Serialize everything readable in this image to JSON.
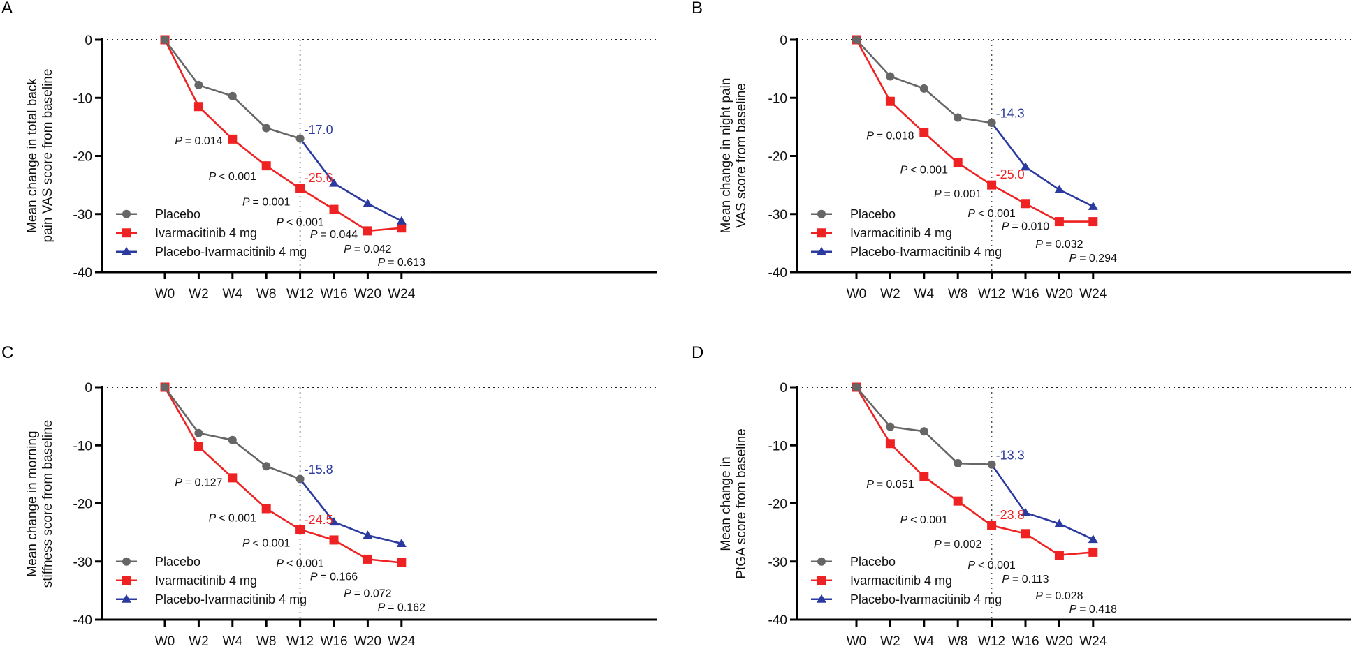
{
  "chart_data": [
    {
      "panel": "A",
      "type": "line",
      "ylabel": [
        "Mean change in total back",
        "pain VAS score from baseline"
      ],
      "xlabel": "",
      "categories": [
        "W0",
        "W2",
        "W4",
        "W8",
        "W12",
        "W16",
        "W20",
        "W24"
      ],
      "ylim": [
        -40,
        0
      ],
      "yticks": [
        0,
        -10,
        -20,
        -30,
        -40
      ],
      "reference_line_x": "W12",
      "series": [
        {
          "name": "Placebo",
          "color": "#666666",
          "marker": "circle",
          "x": [
            "W0",
            "W2",
            "W4",
            "W8",
            "W12"
          ],
          "values": [
            0,
            -7.8,
            -9.7,
            -15.2,
            -17.0
          ]
        },
        {
          "name": "Ivarmacitinib 4 mg",
          "color": "#ee2222",
          "marker": "square",
          "x": [
            "W0",
            "W2",
            "W4",
            "W8",
            "W12",
            "W16",
            "W20",
            "W24"
          ],
          "values": [
            0,
            -11.5,
            -17.1,
            -21.7,
            -25.6,
            -29.2,
            -32.9,
            -32.4
          ]
        },
        {
          "name": "Placebo-Ivarmacitinib 4 mg",
          "color": "#2b3a9e",
          "marker": "triangle",
          "x": [
            "W12",
            "W16",
            "W20",
            "W24"
          ],
          "values": [
            -17.0,
            -24.7,
            -28.2,
            -31.2
          ]
        }
      ],
      "annotations": [
        {
          "text": "-17.0",
          "color": "#2b3a9e",
          "x": "W12",
          "y": -15.5
        },
        {
          "text": "-25.6",
          "color": "#ee2222",
          "x": "W12",
          "y": -23.8
        }
      ],
      "p_values": [
        {
          "x": "W2",
          "label": "= 0.014",
          "y": -17.3
        },
        {
          "x": "W4",
          "label": "< 0.001",
          "y": -23.4
        },
        {
          "x": "W8",
          "label": "= 0.001",
          "y": -27.8
        },
        {
          "x": "W12",
          "label": "< 0.001",
          "y": -31.3
        },
        {
          "x": "W16",
          "label": "= 0.044",
          "y": -33.4
        },
        {
          "x": "W20",
          "label": "= 0.042",
          "y": -35.9
        },
        {
          "x": "W24",
          "label": "= 0.613",
          "y": -38.2
        }
      ],
      "legend": [
        "Placebo",
        "Ivarmacitinib 4 mg",
        "Placebo-Ivarmacitinib 4 mg"
      ],
      "legend_position": "bottom-left"
    },
    {
      "panel": "B",
      "type": "line",
      "ylabel": [
        "Mean change in night pain",
        "VAS score from baseline"
      ],
      "xlabel": "",
      "categories": [
        "W0",
        "W2",
        "W4",
        "W8",
        "W12",
        "W16",
        "W20",
        "W24"
      ],
      "ylim": [
        -40,
        0
      ],
      "yticks": [
        0,
        -10,
        -20,
        -30,
        -40
      ],
      "reference_line_x": "W12",
      "series": [
        {
          "name": "Placebo",
          "color": "#666666",
          "marker": "circle",
          "x": [
            "W0",
            "W2",
            "W4",
            "W8",
            "W12"
          ],
          "values": [
            0,
            -6.3,
            -8.4,
            -13.4,
            -14.3
          ]
        },
        {
          "name": "Ivarmacitinib 4 mg",
          "color": "#ee2222",
          "marker": "square",
          "x": [
            "W0",
            "W2",
            "W4",
            "W8",
            "W12",
            "W16",
            "W20",
            "W24"
          ],
          "values": [
            0,
            -10.6,
            -16.0,
            -21.2,
            -25.0,
            -28.2,
            -31.3,
            -31.3
          ]
        },
        {
          "name": "Placebo-Ivarmacitinib 4 mg",
          "color": "#2b3a9e",
          "marker": "triangle",
          "x": [
            "W12",
            "W16",
            "W20",
            "W24"
          ],
          "values": [
            -14.3,
            -21.9,
            -25.8,
            -28.7
          ]
        }
      ],
      "annotations": [
        {
          "text": "-14.3",
          "color": "#2b3a9e",
          "x": "W12",
          "y": -12.7
        },
        {
          "text": "-25.0",
          "color": "#ee2222",
          "x": "W12",
          "y": -23.2
        }
      ],
      "p_values": [
        {
          "x": "W2",
          "label": "= 0.018",
          "y": -16.4
        },
        {
          "x": "W4",
          "label": "< 0.001",
          "y": -22.3
        },
        {
          "x": "W8",
          "label": "= 0.001",
          "y": -26.4
        },
        {
          "x": "W12",
          "label": "< 0.001",
          "y": -29.8
        },
        {
          "x": "W16",
          "label": "= 0.010",
          "y": -32.0
        },
        {
          "x": "W20",
          "label": "= 0.032",
          "y": -35.1
        },
        {
          "x": "W24",
          "label": "= 0.294",
          "y": -37.5
        }
      ],
      "legend": [
        "Placebo",
        "Ivarmacitinib 4 mg",
        "Placebo-Ivarmacitinib 4 mg"
      ],
      "legend_position": "bottom-left"
    },
    {
      "panel": "C",
      "type": "line",
      "ylabel": [
        "Mean change in morning",
        "stiffness score from baseline"
      ],
      "xlabel": "",
      "categories": [
        "W0",
        "W2",
        "W4",
        "W8",
        "W12",
        "W16",
        "W20",
        "W24"
      ],
      "ylim": [
        -40,
        0
      ],
      "yticks": [
        0,
        -10,
        -20,
        -30,
        -40
      ],
      "reference_line_x": "W12",
      "series": [
        {
          "name": "Placebo",
          "color": "#666666",
          "marker": "circle",
          "x": [
            "W0",
            "W2",
            "W4",
            "W8",
            "W12"
          ],
          "values": [
            0,
            -7.9,
            -9.1,
            -13.6,
            -15.8
          ]
        },
        {
          "name": "Ivarmacitinib 4 mg",
          "color": "#ee2222",
          "marker": "square",
          "x": [
            "W0",
            "W2",
            "W4",
            "W8",
            "W12",
            "W16",
            "W20",
            "W24"
          ],
          "values": [
            0,
            -10.2,
            -15.6,
            -20.9,
            -24.5,
            -26.3,
            -29.6,
            -30.2
          ]
        },
        {
          "name": "Placebo-Ivarmacitinib 4 mg",
          "color": "#2b3a9e",
          "marker": "triangle",
          "x": [
            "W12",
            "W16",
            "W20",
            "W24"
          ],
          "values": [
            -15.8,
            -23.2,
            -25.5,
            -26.9
          ]
        }
      ],
      "annotations": [
        {
          "text": "-15.8",
          "color": "#2b3a9e",
          "x": "W12",
          "y": -14.2
        },
        {
          "text": "-24.5",
          "color": "#ee2222",
          "x": "W12",
          "y": -22.8
        }
      ],
      "p_values": [
        {
          "x": "W2",
          "label": "= 0.127",
          "y": -16.3
        },
        {
          "x": "W4",
          "label": "< 0.001",
          "y": -22.4
        },
        {
          "x": "W8",
          "label": "< 0.001",
          "y": -26.7
        },
        {
          "x": "W12",
          "label": "< 0.001",
          "y": -30.2
        },
        {
          "x": "W16",
          "label": "= 0.166",
          "y": -32.5
        },
        {
          "x": "W20",
          "label": "= 0.072",
          "y": -35.4
        },
        {
          "x": "W24",
          "label": "= 0.162",
          "y": -37.8
        }
      ],
      "legend": [
        "Placebo",
        "Ivarmacitinib 4 mg",
        "Placebo-Ivarmacitinib 4 mg"
      ],
      "legend_position": "bottom-left"
    },
    {
      "panel": "D",
      "type": "line",
      "ylabel": [
        "Mean change in",
        "PtGA score from baseline"
      ],
      "xlabel": "",
      "categories": [
        "W0",
        "W2",
        "W4",
        "W8",
        "W12",
        "W16",
        "W20",
        "W24"
      ],
      "ylim": [
        -40,
        0
      ],
      "yticks": [
        0,
        -10,
        -20,
        -30,
        -40
      ],
      "reference_line_x": "W12",
      "series": [
        {
          "name": "Placebo",
          "color": "#666666",
          "marker": "circle",
          "x": [
            "W0",
            "W2",
            "W4",
            "W8",
            "W12"
          ],
          "values": [
            0,
            -6.8,
            -7.6,
            -13.1,
            -13.3
          ]
        },
        {
          "name": "Ivarmacitinib 4 mg",
          "color": "#ee2222",
          "marker": "square",
          "x": [
            "W0",
            "W2",
            "W4",
            "W8",
            "W12",
            "W16",
            "W20",
            "W24"
          ],
          "values": [
            0,
            -9.7,
            -15.4,
            -19.6,
            -23.8,
            -25.2,
            -28.9,
            -28.4
          ]
        },
        {
          "name": "Placebo-Ivarmacitinib 4 mg",
          "color": "#2b3a9e",
          "marker": "triangle",
          "x": [
            "W12",
            "W16",
            "W20",
            "W24"
          ],
          "values": [
            -13.3,
            -21.6,
            -23.5,
            -26.2
          ]
        }
      ],
      "annotations": [
        {
          "text": "-13.3",
          "color": "#2b3a9e",
          "x": "W12",
          "y": -11.7
        },
        {
          "text": "-23.8",
          "color": "#ee2222",
          "x": "W12",
          "y": -22.0
        }
      ],
      "p_values": [
        {
          "x": "W2",
          "label": "= 0.051",
          "y": -16.6
        },
        {
          "x": "W4",
          "label": "< 0.001",
          "y": -22.7
        },
        {
          "x": "W8",
          "label": "= 0.002",
          "y": -26.9
        },
        {
          "x": "W12",
          "label": "< 0.001",
          "y": -30.5
        },
        {
          "x": "W16",
          "label": "= 0.113",
          "y": -32.9
        },
        {
          "x": "W20",
          "label": "= 0.028",
          "y": -35.8
        },
        {
          "x": "W24",
          "label": "= 0.418",
          "y": -38.1
        }
      ],
      "legend": [
        "Placebo",
        "Ivarmacitinib 4 mg",
        "Placebo-Ivarmacitinib 4 mg"
      ],
      "legend_position": "bottom-left"
    }
  ]
}
